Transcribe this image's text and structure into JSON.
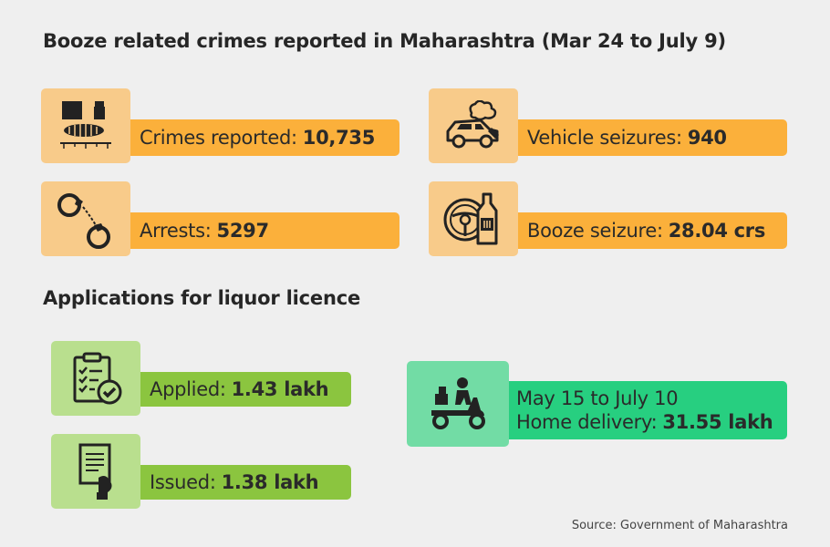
{
  "section1": {
    "title": "Booze related crimes reported in Maharashtra (Mar 24 to July 9)",
    "stats": {
      "crimes": {
        "label": "Crimes reported:",
        "value": "10,735",
        "icon": "evidence-icon"
      },
      "vehicle": {
        "label": "Vehicle seizures:",
        "value": "940",
        "icon": "car-seizure-icon"
      },
      "arrests": {
        "label": "Arrests:",
        "value": "5297",
        "icon": "handcuffs-icon"
      },
      "booze": {
        "label": "Booze seizure:",
        "value": "28.04 crs",
        "icon": "steering-bottle-icon"
      }
    }
  },
  "section2": {
    "title": "Applications for liquor licence",
    "stats": {
      "applied": {
        "label": "Applied:",
        "value": "1.43 lakh",
        "icon": "clipboard-check-icon"
      },
      "issued": {
        "label": "Issued:",
        "value": "1.38 lakh",
        "icon": "document-hand-icon"
      },
      "delivery": {
        "line1": "May 15 to July 10",
        "label": "Home delivery:",
        "value": "31.55 lakh",
        "icon": "scooter-delivery-icon"
      }
    }
  },
  "source": "Source: Government of Maharashtra",
  "colors": {
    "orange_bar": "#fbb03b",
    "orange_icon": "#f8cb8a",
    "green_bar": "#8bc53f",
    "green_icon": "#b9df8e",
    "teal_bar": "#27cf80",
    "teal_icon": "#72dca5",
    "background": "#efefef"
  }
}
